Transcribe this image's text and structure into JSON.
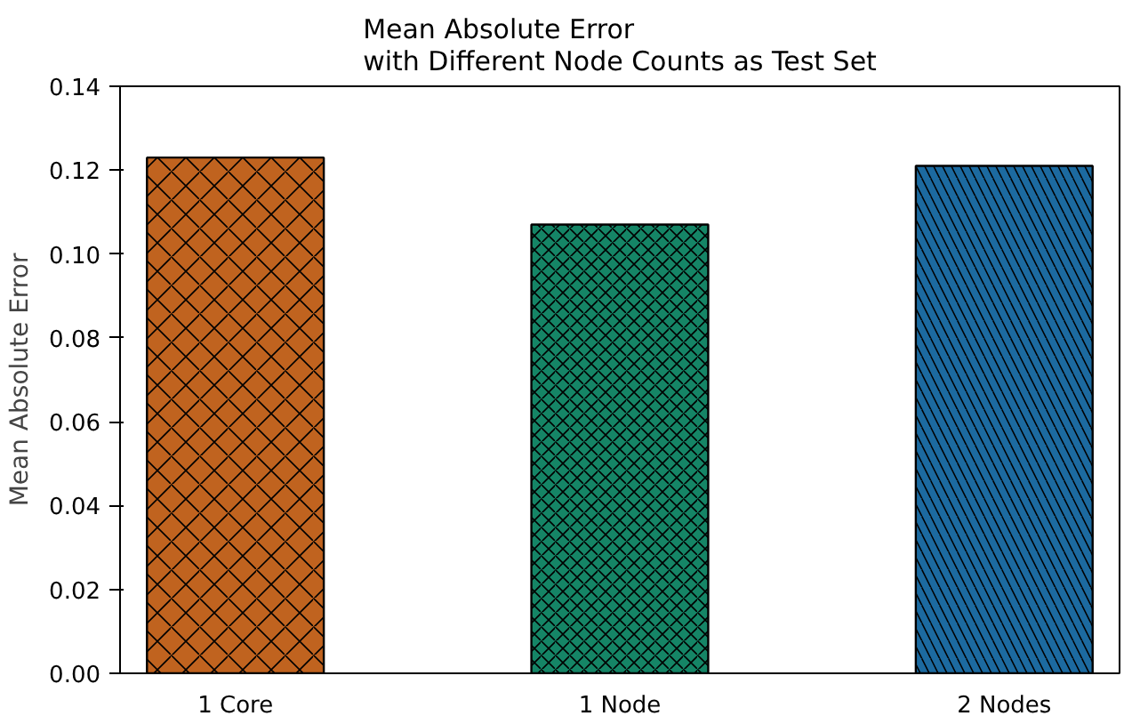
{
  "chart_data": {
    "type": "bar",
    "title": "Mean Absolute Error\nwith Different Node Counts as Test Set",
    "ylabel": "Mean Absolute Error",
    "categories": [
      "1 Core",
      "1 Node",
      "2 Nodes"
    ],
    "values": [
      0.123,
      0.107,
      0.121
    ],
    "colors": [
      "#c0631f",
      "#158566",
      "#1c6aa0"
    ],
    "ylim": [
      0,
      0.14
    ],
    "yticks": [
      {
        "value": 0,
        "label": "0.00"
      },
      {
        "value": 0.02,
        "label": "0.02"
      },
      {
        "value": 0.04,
        "label": "0.04"
      },
      {
        "value": 0.06,
        "label": "0.06"
      },
      {
        "value": 0.08,
        "label": "0.08"
      },
      {
        "value": 0.1,
        "label": "0.10"
      },
      {
        "value": 0.12,
        "label": "0.12"
      },
      {
        "value": 0.14,
        "label": "0.14"
      }
    ],
    "grid": false
  }
}
